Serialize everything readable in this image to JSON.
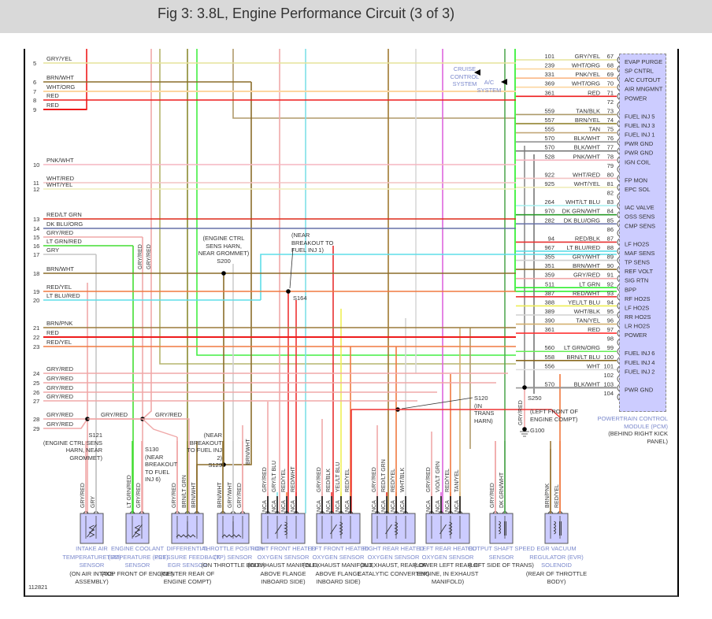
{
  "title": "Fig 3: 3.8L, Engine Performance Circuit (3 of 3)",
  "figure_id": "112821",
  "left_rows": [
    {
      "n": "5",
      "label": "GRY/YEL",
      "color": "#e6e49a"
    },
    {
      "n": "6",
      "label": "BRN/WHT",
      "color": "#8b6d2a"
    },
    {
      "n": "7",
      "label": "WHT/ORG",
      "color": "#fcd6a0"
    },
    {
      "n": "8",
      "label": "RED",
      "color": "#ee1c1c"
    },
    {
      "n": "9",
      "label": "RED",
      "color": "#ee1c1c"
    },
    {
      "n": "10",
      "label": "PNK/WHT",
      "color": "#f5b6c0"
    },
    {
      "n": "11",
      "label": "WHT/RED",
      "color": "#f3c4c4"
    },
    {
      "n": "12",
      "label": "WHT/YEL",
      "color": "#efedbc"
    },
    {
      "n": "13",
      "label": "RED/LT GRN",
      "color": "#dd2a1a"
    },
    {
      "n": "14",
      "label": "DK BLU/ORG",
      "color": "#6670a8"
    },
    {
      "n": "15",
      "label": "GRY/RED",
      "color": "#f0a8a8"
    },
    {
      "n": "16",
      "label": "LT GRN/RED",
      "color": "#44dd33"
    },
    {
      "n": "17",
      "label": "GRY",
      "color": "#c6c6c6"
    },
    {
      "n": "18",
      "label": "BRN/WHT",
      "color": "#8b6d2a"
    },
    {
      "n": "19",
      "label": "RED/YEL",
      "color": "#f07a40"
    },
    {
      "n": "20",
      "label": "LT BLU/RED",
      "color": "#5edde8"
    },
    {
      "n": "21",
      "label": "BRN/PNK",
      "color": "#9b7a3a"
    },
    {
      "n": "22",
      "label": "RED",
      "color": "#ee1c1c"
    },
    {
      "n": "23",
      "label": "RED/YEL",
      "color": "#f07a40"
    },
    {
      "n": "24",
      "label": "GRY/RED",
      "color": "#f0a8a8"
    },
    {
      "n": "25",
      "label": "GRY/RED",
      "color": "#f0a8a8"
    },
    {
      "n": "26",
      "label": "GRY/RED",
      "color": "#f0a8a8"
    },
    {
      "n": "27",
      "label": "GRY/RED",
      "color": "#f0a8a8"
    },
    {
      "n": "28",
      "label": "GRY/RED",
      "color": "#f0a8a8"
    },
    {
      "n": "29",
      "label": "GRY/RED",
      "color": "#f0a8a8"
    }
  ],
  "pcm": {
    "name": "POWERTRAIN CONTROL MODULE (PCM)",
    "location": "(BEHIND RIGHT KICK PANEL)",
    "pins": [
      {
        "pin": "67",
        "circuit": "101",
        "wire": "GRY/YEL",
        "func": "EVAP PURGE",
        "color": "#e6e49a"
      },
      {
        "pin": "68",
        "circuit": "239",
        "wire": "WHT/ORG",
        "func": "SP CNTRL",
        "color": "#fcd6a0"
      },
      {
        "pin": "69",
        "circuit": "331",
        "wire": "PNK/YEL",
        "func": "A/C CUTOUT",
        "color": "#fbb888"
      },
      {
        "pin": "70",
        "circuit": "369",
        "wire": "WHT/ORG",
        "func": "AIR MNGMNT",
        "color": "#fcd6a0"
      },
      {
        "pin": "71",
        "circuit": "361",
        "wire": "RED",
        "func": "POWER",
        "color": "#ee1c1c"
      },
      {
        "pin": "72",
        "circuit": "",
        "wire": "",
        "func": "",
        "color": ""
      },
      {
        "pin": "73",
        "circuit": "559",
        "wire": "TAN/BLK",
        "func": "FUEL INJ 5",
        "color": "#ad9a6a"
      },
      {
        "pin": "74",
        "circuit": "557",
        "wire": "BRN/YEL",
        "func": "FUEL INJ 3",
        "color": "#8a7a20"
      },
      {
        "pin": "75",
        "circuit": "555",
        "wire": "TAN",
        "func": "FUEL INJ 1",
        "color": "#c2a878"
      },
      {
        "pin": "76",
        "circuit": "570",
        "wire": "BLK/WHT",
        "func": "PWR GND",
        "color": "#8a8a8a"
      },
      {
        "pin": "77",
        "circuit": "570",
        "wire": "BLK/WHT",
        "func": "PWR GND",
        "color": "#777777"
      },
      {
        "pin": "78",
        "circuit": "528",
        "wire": "PNK/WHT",
        "func": "IGN COIL",
        "color": "#f5b6c0"
      },
      {
        "pin": "79",
        "circuit": "",
        "wire": "",
        "func": "",
        "color": ""
      },
      {
        "pin": "80",
        "circuit": "922",
        "wire": "WHT/RED",
        "func": "FP MON",
        "color": "#f3c4c4"
      },
      {
        "pin": "81",
        "circuit": "925",
        "wire": "WHT/YEL",
        "func": "EPC SOL",
        "color": "#efedbc"
      },
      {
        "pin": "82",
        "circuit": "",
        "wire": "",
        "func": "",
        "color": ""
      },
      {
        "pin": "83",
        "circuit": "264",
        "wire": "WHT/LT BLU",
        "func": "IAC VALVE",
        "color": "#a8f0f0"
      },
      {
        "pin": "84",
        "circuit": "970",
        "wire": "DK GRN/WHT",
        "func": "OSS SENS",
        "color": "#2a9a2a"
      },
      {
        "pin": "85",
        "circuit": "282",
        "wire": "DK BLU/ORG",
        "func": "CMP SENS",
        "color": "#6670a8"
      },
      {
        "pin": "86",
        "circuit": "",
        "wire": "",
        "func": "",
        "color": ""
      },
      {
        "pin": "87",
        "circuit": "94",
        "wire": "RED/BLK",
        "func": "LF HO2S",
        "color": "#e83030"
      },
      {
        "pin": "88",
        "circuit": "967",
        "wire": "LT BLU/RED",
        "func": "MAF SENS",
        "color": "#5edde8"
      },
      {
        "pin": "89",
        "circuit": "355",
        "wire": "GRY/WHT",
        "func": "TP SENS",
        "color": "#cfcfcf"
      },
      {
        "pin": "90",
        "circuit": "351",
        "wire": "BRN/WHT",
        "func": "REF VOLT",
        "color": "#8b6d2a"
      },
      {
        "pin": "91",
        "circuit": "359",
        "wire": "GRY/RED",
        "func": "SIG RTN",
        "color": "#f0a8a8"
      },
      {
        "pin": "92",
        "circuit": "511",
        "wire": "LT GRN",
        "func": "BPP",
        "color": "#22ee22"
      },
      {
        "pin": "93",
        "circuit": "387",
        "wire": "RED/WHT",
        "func": "RF HO2S",
        "color": "#ee3333"
      },
      {
        "pin": "94",
        "circuit": "388",
        "wire": "YEL/LT BLU",
        "func": "LF HO2S",
        "color": "#eeee55"
      },
      {
        "pin": "95",
        "circuit": "389",
        "wire": "WHT/BLK",
        "func": "RR HO2S",
        "color": "#d4d4d4"
      },
      {
        "pin": "96",
        "circuit": "390",
        "wire": "TAN/YEL",
        "func": "LR HO2S",
        "color": "#d4b070"
      },
      {
        "pin": "97",
        "circuit": "361",
        "wire": "RED",
        "func": "POWER",
        "color": "#ff3333"
      },
      {
        "pin": "98",
        "circuit": "",
        "wire": "",
        "func": "",
        "color": ""
      },
      {
        "pin": "99",
        "circuit": "560",
        "wire": "LT GRN/ORG",
        "func": "FUEL INJ 6",
        "color": "#66ee55"
      },
      {
        "pin": "100",
        "circuit": "558",
        "wire": "BRN/LT BLU",
        "func": "FUEL INJ 4",
        "color": "#8a6a20"
      },
      {
        "pin": "101",
        "circuit": "556",
        "wire": "WHT",
        "func": "FUEL INJ 2",
        "color": "#dddddd"
      },
      {
        "pin": "102",
        "circuit": "",
        "wire": "",
        "func": "",
        "color": ""
      },
      {
        "pin": "103",
        "circuit": "570",
        "wire": "BLK/WHT",
        "func": "PWR GND",
        "color": "#999999"
      },
      {
        "pin": "104",
        "circuit": "",
        "wire": "",
        "func": "",
        "color": ""
      }
    ]
  },
  "references": {
    "cruise": "CRUISE CONTROL SYSTEM",
    "ac": "A/C SYSTEM"
  },
  "splices": {
    "s121": {
      "id": "S121",
      "desc": "(ENGINE CTRL SENS HARN, NEAR GROMMET)"
    },
    "s130": {
      "id": "S130",
      "desc": "(NEAR BREAKOUT TO FUEL INJ 6)"
    },
    "s200": {
      "id": "S200",
      "desc": "(ENGINE CTRL SENS HARN, NEAR GROMMET)"
    },
    "s129": {
      "id": "S129",
      "desc": "(NEAR BREAKOUT TO FUEL INJ 2)"
    },
    "s164": {
      "id": "S164",
      "desc": "(NEAR BREAKOUT TO FUEL INJ 1)"
    },
    "s120": {
      "id": "S120",
      "desc": "(IN TRANS HARN)"
    },
    "s250": {
      "id": "S250",
      "desc": "(LEFT FRONT OF ENGINE COMPT)"
    },
    "g100": {
      "id": "G100"
    }
  },
  "splice_wires": {
    "s121_s130": "GRY/RED",
    "s130_right": "GRY/RED",
    "s129_vertical": "BRN/WHT",
    "g100_wire": "GRY/RED",
    "left_vert_1": "GRY/RED",
    "left_vert_2": "GRY/RED"
  },
  "nca_label": "NCA",
  "components": [
    {
      "name": "INTAKE AIR TEMPERATURE (IAT) SENSOR",
      "location": "(ON AIR INTAKE ASSEMBLY)",
      "icon": "thermistor-icon",
      "nca": false,
      "pins": [
        {
          "wire": "GRY/RED",
          "color": "#f0a8a8"
        },
        {
          "wire": "GRY",
          "color": "#c6c6c6"
        }
      ]
    },
    {
      "name": "ENGINE COOLANT TEMPERATURE (ECT) SENSOR",
      "location": "(TOP FRONT OF ENGINE)",
      "icon": "thermistor-icon",
      "nca": false,
      "pins": [
        {
          "wire": "LT GRN/RED",
          "color": "#44dd33"
        },
        {
          "wire": "GRY/RED",
          "color": "#f0a8a8"
        }
      ]
    },
    {
      "name": "DIFFERENTIAL PRESSURE FEEDBACK EGR SENSOR",
      "location": "(CENTER REAR OF ENGINE COMPT)",
      "icon": "potentiometer-icon",
      "nca": false,
      "pins": [
        {
          "wire": "GRY/RED",
          "color": "#f0a8a8"
        },
        {
          "wire": "BRN/LT GRN",
          "color": "#8a8a30"
        },
        {
          "wire": "BRN/WHT",
          "color": "#8b6d2a"
        }
      ]
    },
    {
      "name": "THROTTLE POSITION (TP) SENSOR",
      "location": "(ON THROTTLE BODY)",
      "icon": "potentiometer-icon",
      "nca": false,
      "pins": [
        {
          "wire": "BRN/WHT",
          "color": "#8b6d2a"
        },
        {
          "wire": "GRY/WHT",
          "color": "#cfcfcf"
        },
        {
          "wire": "GRY/RED",
          "color": "#f0a8a8"
        }
      ]
    },
    {
      "name": "RIGHT FRONT HEATED OXYGEN SENSOR",
      "location": "(IN EXHAUST MANIFOLD, ABOVE FLANGE INBOARD SIDE)",
      "icon": "oxygen-sensor-icon",
      "nca": true,
      "pins": [
        {
          "wire": "GRY/RED",
          "color": "#f0a8a8"
        },
        {
          "wire": "GRY/LT BLU",
          "color": "#7fe0e8"
        },
        {
          "wire": "RED/YEL",
          "color": "#f07a40"
        },
        {
          "wire": "RED/WHT",
          "color": "#ee3333"
        }
      ]
    },
    {
      "name": "LEFT FRONT HEATED OXYGEN SENSOR",
      "location": "(IN EXHAUST MANIFOLD, ABOVE FLANGE INBOARD SIDE)",
      "icon": "oxygen-sensor-icon",
      "nca": true,
      "pins": [
        {
          "wire": "GRY/RED",
          "color": "#f0a8a8"
        },
        {
          "wire": "RED/BLK",
          "color": "#e83030"
        },
        {
          "wire": "YEL/LT BLU",
          "color": "#eeee55"
        },
        {
          "wire": "RED/YEL",
          "color": "#f07a40"
        }
      ]
    },
    {
      "name": "RIGHT REAR HEATED OXYGEN SENSOR",
      "location": "(IN EXHAUST, REAR OF CATALYTIC CONVERTER)",
      "icon": "oxygen-sensor-icon",
      "nca": true,
      "pins": [
        {
          "wire": "GRY/RED",
          "color": "#f0a8a8"
        },
        {
          "wire": "RED/LT GRN",
          "color": "#dd2a1a"
        },
        {
          "wire": "RED/YEL",
          "color": "#f07a40"
        },
        {
          "wire": "WHT/BLK",
          "color": "#d4d4d4"
        }
      ]
    },
    {
      "name": "LEFT REAR HEATED OXYGEN SENSOR",
      "location": "(LOWER LEFT REAR OF ENGINE, IN EXHAUST MANIFOLD)",
      "icon": "oxygen-sensor-icon",
      "nca": true,
      "pins": [
        {
          "wire": "GRY/RED",
          "color": "#f0a8a8"
        },
        {
          "wire": "VIO/LT GRN",
          "color": "#dd66dd"
        },
        {
          "wire": "RED/YEL",
          "color": "#f07a40"
        },
        {
          "wire": "TAN/YEL",
          "color": "#d4b070"
        }
      ]
    },
    {
      "name": "OUTPUT SHAFT SPEED SENSOR",
      "location": "(LEFT SIDE OF TRANS)",
      "icon": "coil-icon",
      "nca": false,
      "pins": [
        {
          "wire": "GRY/RED",
          "color": "#f0a8a8"
        },
        {
          "wire": "DK GRN/WHT",
          "color": "#55aa55"
        }
      ]
    },
    {
      "name": "EGR VACUUM REGULATOR (EVR) SOLENOID",
      "location": "(REAR OF THROTTLE BODY)",
      "icon": "solenoid-icon",
      "nca": false,
      "pins": [
        {
          "wire": "BRN/PNK",
          "color": "#9b7a3a"
        },
        {
          "wire": "RED/YEL",
          "color": "#f07a40"
        }
      ]
    }
  ]
}
